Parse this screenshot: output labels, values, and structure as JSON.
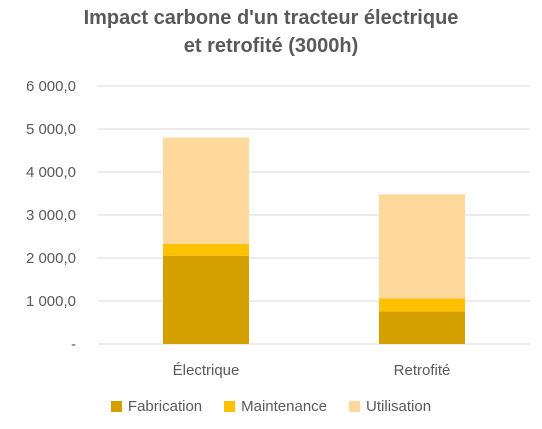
{
  "chart_data": {
    "type": "bar",
    "stacked": true,
    "title_lines": [
      "Impact carbone d'un tracteur électrique",
      "et retrofité (3000h)"
    ],
    "categories": [
      "Électrique",
      "Retrofité"
    ],
    "series": [
      {
        "name": "Fabrication",
        "color": "#d4a000",
        "values": [
          2050,
          760
        ]
      },
      {
        "name": "Maintenance",
        "color": "#ffc000",
        "values": [
          280,
          300
        ]
      },
      {
        "name": "Utilisation",
        "color": "#ffd89c",
        "values": [
          2470,
          2420
        ]
      }
    ],
    "ylim": [
      0,
      6000
    ],
    "yticks": [
      {
        "value": 0,
        "label": "-"
      },
      {
        "value": 1000,
        "label": "1 000,0"
      },
      {
        "value": 2000,
        "label": "2 000,0"
      },
      {
        "value": 3000,
        "label": "3 000,0"
      },
      {
        "value": 4000,
        "label": "4 000,0"
      },
      {
        "value": 5000,
        "label": "5 000,0"
      },
      {
        "value": 6000,
        "label": "6 000,0"
      }
    ],
    "grid": true,
    "legend_position": "bottom",
    "grid_color": "#d9d9d9",
    "text_color": "#595959"
  }
}
